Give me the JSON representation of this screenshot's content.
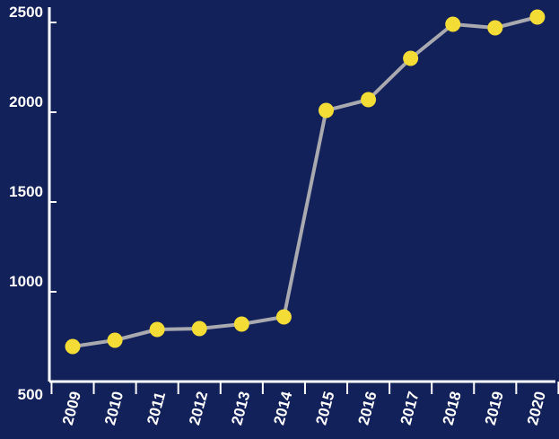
{
  "colors": {
    "background": "#13215a",
    "axis": "#ffffff",
    "line": "#a9a9b0",
    "marker": "#f2dc35",
    "text": "#ffffff"
  },
  "chart_data": {
    "type": "line",
    "title": "",
    "xlabel": "",
    "ylabel": "",
    "x": [
      "2009",
      "2010",
      "2011",
      "2012",
      "2013",
      "2014",
      "2015",
      "2016",
      "2017",
      "2018",
      "2019",
      "2020"
    ],
    "series": [
      {
        "values": [
          695,
          730,
          790,
          795,
          820,
          860,
          2010,
          2070,
          2300,
          2490,
          2470,
          2530
        ]
      }
    ],
    "ylim": [
      500,
      2500
    ],
    "yticks": [
      "500",
      "1000",
      "1500",
      "2000",
      "2500"
    ],
    "grid": false,
    "legend": "none"
  }
}
